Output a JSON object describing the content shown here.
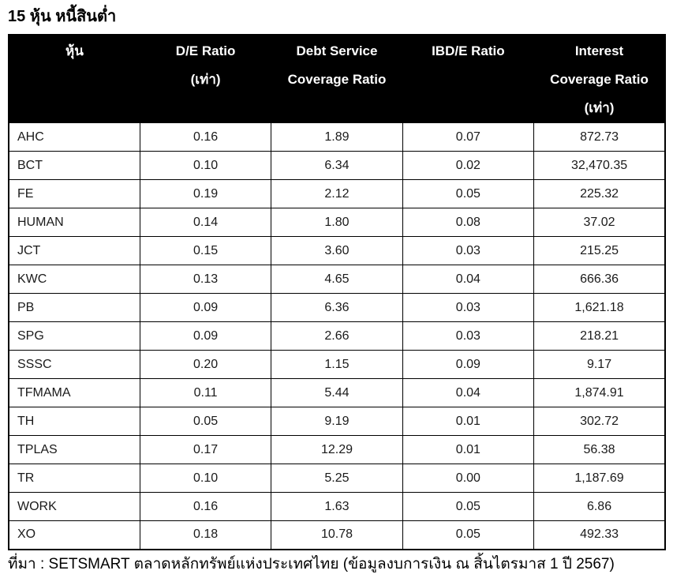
{
  "title": "15 หุ้น หนี้สินต่ำ",
  "table": {
    "columns": [
      {
        "id": "stock",
        "lines": [
          "หุ้น"
        ]
      },
      {
        "id": "de-ratio",
        "lines": [
          "D/E Ratio",
          "(เท่า)"
        ]
      },
      {
        "id": "dscr",
        "lines": [
          "Debt Service",
          "Coverage Ratio"
        ]
      },
      {
        "id": "ibde-ratio",
        "lines": [
          "IBD/E Ratio"
        ]
      },
      {
        "id": "icr",
        "lines": [
          "Interest",
          "Coverage Ratio",
          "(เท่า)"
        ]
      }
    ],
    "rows": [
      [
        "AHC",
        "0.16",
        "1.89",
        "0.07",
        "872.73"
      ],
      [
        "BCT",
        "0.10",
        "6.34",
        "0.02",
        "32,470.35"
      ],
      [
        "FE",
        "0.19",
        "2.12",
        "0.05",
        "225.32"
      ],
      [
        "HUMAN",
        "0.14",
        "1.80",
        "0.08",
        "37.02"
      ],
      [
        "JCT",
        "0.15",
        "3.60",
        "0.03",
        "215.25"
      ],
      [
        "KWC",
        "0.13",
        "4.65",
        "0.04",
        "666.36"
      ],
      [
        "PB",
        "0.09",
        "6.36",
        "0.03",
        "1,621.18"
      ],
      [
        "SPG",
        "0.09",
        "2.66",
        "0.03",
        "218.21"
      ],
      [
        "SSSC",
        "0.20",
        "1.15",
        "0.09",
        "9.17"
      ],
      [
        "TFMAMA",
        "0.11",
        "5.44",
        "0.04",
        "1,874.91"
      ],
      [
        "TH",
        "0.05",
        "9.19",
        "0.01",
        "302.72"
      ],
      [
        "TPLAS",
        "0.17",
        "12.29",
        "0.01",
        "56.38"
      ],
      [
        "TR",
        "0.10",
        "5.25",
        "0.00",
        "1,187.69"
      ],
      [
        "WORK",
        "0.16",
        "1.63",
        "0.05",
        "6.86"
      ],
      [
        "XO",
        "0.18",
        "10.78",
        "0.05",
        "492.33"
      ]
    ]
  },
  "source": "ที่มา : SETSMART ตลาดหลักทรัพย์แห่งประเทศไทย (ข้อมูลงบการเงิน ณ สิ้นไตรมาส 1 ปี 2567)",
  "colors": {
    "header_bg": "#000000",
    "header_text": "#ffffff",
    "border": "#000000",
    "body_text": "#1a1a1a",
    "page_bg": "#ffffff"
  }
}
